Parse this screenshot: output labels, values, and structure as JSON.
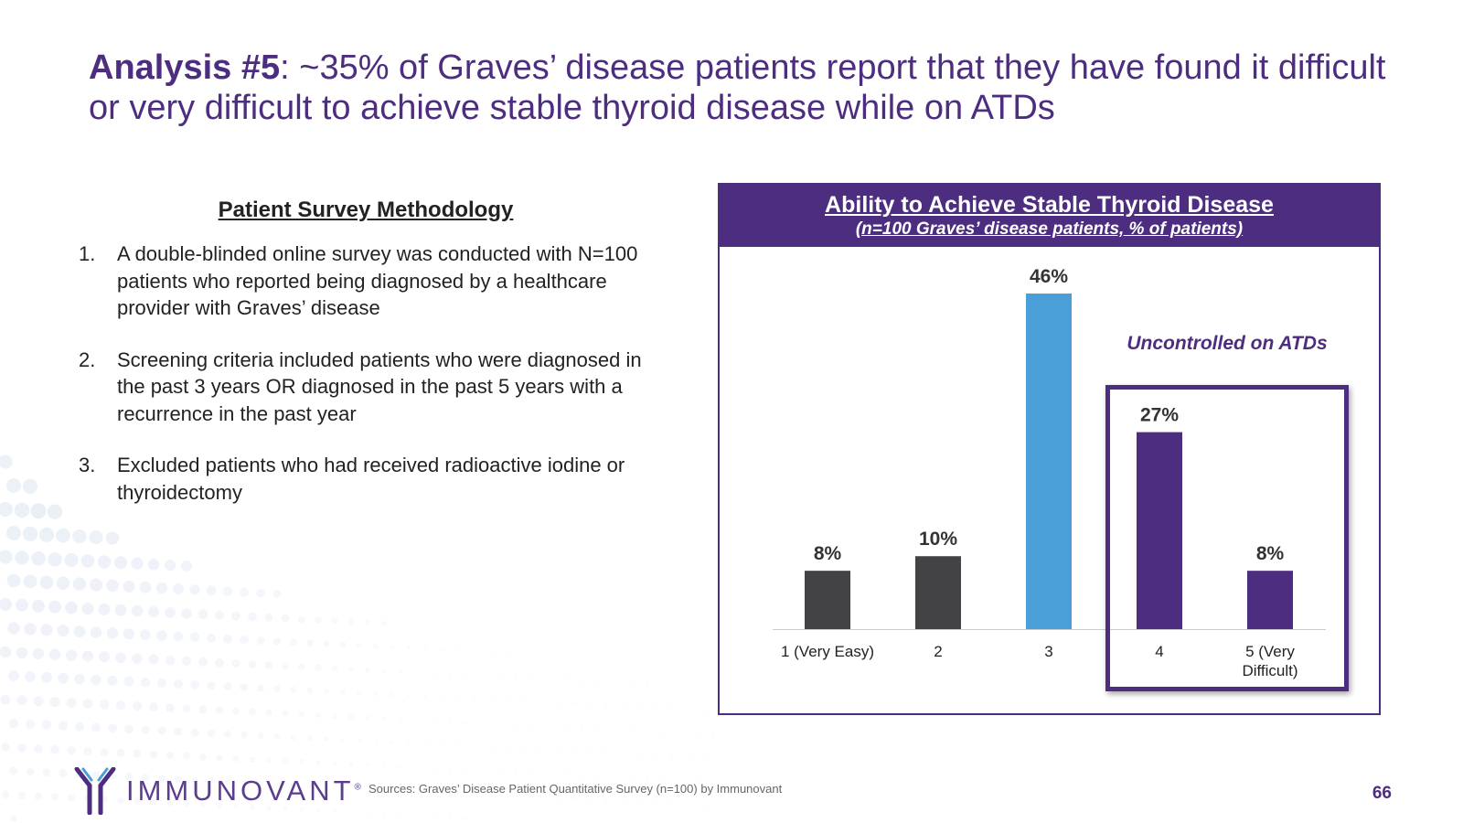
{
  "title": {
    "bold": "Analysis #5",
    "rest": ": ~35% of Graves’ disease patients report that they have found it difficult or very difficult to achieve stable thyroid disease while on ATDs"
  },
  "methodology": {
    "heading": "Patient Survey Methodology",
    "items": [
      {
        "num": "1.",
        "text": "A double-blinded online survey was conducted with N=100 patients who reported being diagnosed by a healthcare provider with Graves’ disease"
      },
      {
        "num": "2.",
        "text": "Screening criteria included patients who were diagnosed in the past 3 years OR diagnosed in the past 5 years with a recurrence in the past year"
      },
      {
        "num": "3.",
        "text": "Excluded patients who had received radioactive iodine or thyroidectomy"
      }
    ]
  },
  "chart_data": {
    "type": "bar",
    "title": "Ability to Achieve Stable Thyroid Disease",
    "subtitle": "(n=100 Graves’ disease patients, % of patients)",
    "categories": [
      "1 (Very Easy)",
      "2",
      "3",
      "4",
      "5 (Very Difficult)"
    ],
    "values": [
      8,
      10,
      46,
      27,
      8
    ],
    "data_labels": [
      "8%",
      "10%",
      "46%",
      "27%",
      "8%"
    ],
    "bar_colors": [
      "#434345",
      "#434345",
      "#4a9fd8",
      "#4d2d80",
      "#4d2d80"
    ],
    "ylim": [
      0,
      46
    ],
    "grid": false,
    "annotation": "Uncontrolled on ATDs"
  },
  "colors": {
    "accent": "#4d2d80",
    "dark_bar": "#434345",
    "highlight_bar": "#4a9fd8"
  },
  "footer": {
    "logo_text": "IMMUNOVANT",
    "logo_mark": "®",
    "sources": "Sources: Graves’ Disease Patient Quantitative Survey (n=100) by Immunovant",
    "page_number": "66"
  }
}
